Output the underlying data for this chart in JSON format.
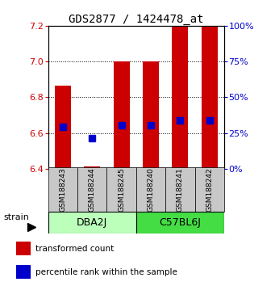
{
  "title": "GDS2877 / 1424478_at",
  "samples": [
    "GSM188243",
    "GSM188244",
    "GSM188245",
    "GSM188240",
    "GSM188241",
    "GSM188242"
  ],
  "group_labels": [
    "DBA2J",
    "C57BL6J"
  ],
  "ylim_left": [
    6.4,
    7.2
  ],
  "ylim_right": [
    0,
    100
  ],
  "yticks_left": [
    6.4,
    6.6,
    6.8,
    7.0,
    7.2
  ],
  "yticks_right": [
    0,
    25,
    50,
    75,
    100
  ],
  "bar_bottom": 6.4,
  "transformed_counts": [
    6.865,
    6.415,
    7.0,
    7.0,
    7.2,
    7.2
  ],
  "percentile_ranks": [
    6.635,
    6.57,
    6.645,
    6.645,
    6.67,
    6.67
  ],
  "bar_color": "#cc0000",
  "percentile_color": "#0000cc",
  "bar_width": 0.55,
  "percentile_size": 6,
  "sample_bg_color": "#c8c8c8",
  "dba2j_color": "#bbffbb",
  "c57bl6j_color": "#44dd44",
  "legend_red_label": "transformed count",
  "legend_blue_label": "percentile rank within the sample",
  "strain_label": "strain",
  "left_axis_color": "#cc0000",
  "right_axis_color": "#0000cc",
  "title_fontsize": 10,
  "tick_fontsize": 8,
  "sample_fontsize": 6.5,
  "group_fontsize": 9,
  "legend_fontsize": 7.5
}
